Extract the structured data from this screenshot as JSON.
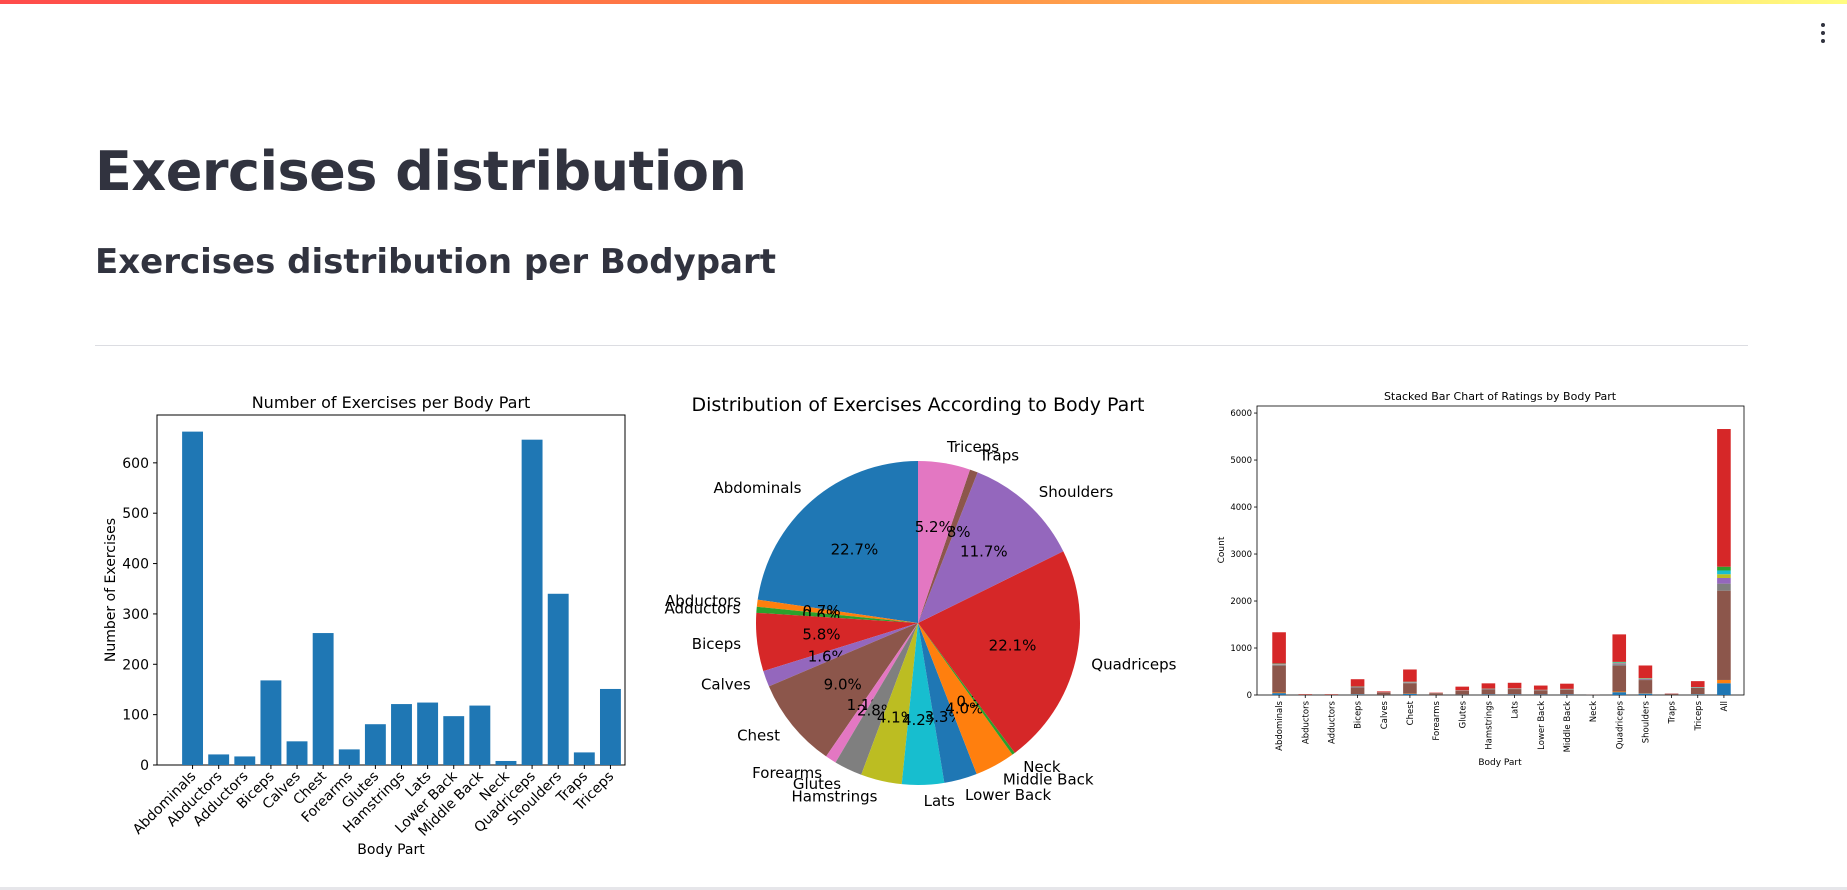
{
  "header": {
    "menu_icon": "vertical-ellipsis-icon",
    "accent_gradient": [
      "#ff4b4b",
      "#ff8c42",
      "#fffd80"
    ]
  },
  "page": {
    "title": "Exercises distribution",
    "subtitle": "Exercises distribution per Bodypart"
  },
  "chart_data": [
    {
      "type": "bar",
      "title": "Number of Exercises per Body Part",
      "xlabel": "Body Part",
      "ylabel": "Number of Exercises",
      "categories": [
        "Abdominals",
        "Abductors",
        "Adductors",
        "Biceps",
        "Calves",
        "Chest",
        "Forearms",
        "Glutes",
        "Hamstrings",
        "Lats",
        "Lower Back",
        "Middle Back",
        "Neck",
        "Quadriceps",
        "Shoulders",
        "Traps",
        "Triceps"
      ],
      "values": [
        662,
        21,
        17,
        168,
        47,
        262,
        31,
        81,
        121,
        124,
        97,
        118,
        8,
        646,
        340,
        25,
        151
      ],
      "ylim": [
        0,
        695
      ],
      "yticks": [
        0,
        100,
        200,
        300,
        400,
        500,
        600
      ],
      "color": "#1f77b4",
      "grid": false
    },
    {
      "type": "pie",
      "title": "Distribution of Exercises According to Body Part",
      "slices": [
        {
          "label": "Abdominals",
          "value": 22.7,
          "pct": "22.7%",
          "color": "#1f77b4"
        },
        {
          "label": "Abductors",
          "value": 0.7,
          "pct": "0.7%",
          "color": "#ff7f0e"
        },
        {
          "label": "Adductors",
          "value": 0.6,
          "pct": "0.6%",
          "color": "#2ca02c"
        },
        {
          "label": "Biceps",
          "value": 5.8,
          "pct": "5.8%",
          "color": "#d62728"
        },
        {
          "label": "Calves",
          "value": 1.6,
          "pct": "1.6%",
          "color": "#9467bd"
        },
        {
          "label": "Chest",
          "value": 9.0,
          "pct": "9.0%",
          "color": "#8c564b"
        },
        {
          "label": "Forearms",
          "value": 1.1,
          "pct": "1.1%",
          "color": "#e377c2"
        },
        {
          "label": "Glutes",
          "value": 2.8,
          "pct": "2.8%",
          "color": "#7f7f7f"
        },
        {
          "label": "Hamstrings",
          "value": 4.1,
          "pct": "4.1%",
          "color": "#bcbd22"
        },
        {
          "label": "Lats",
          "value": 4.2,
          "pct": "4.2%",
          "color": "#17becf"
        },
        {
          "label": "Lower Back",
          "value": 3.3,
          "pct": "3.3%",
          "color": "#1f77b4"
        },
        {
          "label": "Middle Back",
          "value": 4.0,
          "pct": "4.0%",
          "color": "#ff7f0e"
        },
        {
          "label": "Neck",
          "value": 0.3,
          "pct": "0.3%",
          "color": "#2ca02c"
        },
        {
          "label": "Quadriceps",
          "value": 22.1,
          "pct": "22.1%",
          "color": "#d62728"
        },
        {
          "label": "Shoulders",
          "value": 11.7,
          "pct": "11.7%",
          "color": "#9467bd"
        },
        {
          "label": "Traps",
          "value": 0.8,
          "pct": "0.8%",
          "color": "#8c564b"
        },
        {
          "label": "Triceps",
          "value": 5.2,
          "pct": "5.2%",
          "color": "#e377c2"
        }
      ],
      "start_angle_deg": 90,
      "direction": "counterclockwise"
    },
    {
      "type": "stacked-bar",
      "title": "Stacked Bar Chart of Ratings by Body Part",
      "xlabel": "Body Part",
      "ylabel": "Count",
      "categories": [
        "Abdominals",
        "Abductors",
        "Adductors",
        "Biceps",
        "Calves",
        "Chest",
        "Forearms",
        "Glutes",
        "Hamstrings",
        "Lats",
        "Lower Back",
        "Middle Back",
        "Neck",
        "Quadriceps",
        "Shoulders",
        "Traps",
        "Triceps",
        "All"
      ],
      "ylim": [
        0,
        6150
      ],
      "yticks": [
        0,
        1000,
        2000,
        3000,
        4000,
        5000,
        6000
      ],
      "grid": false,
      "series": [
        {
          "color": "#1f77b4",
          "values": [
            40,
            1,
            1,
            15,
            5,
            25,
            3,
            8,
            12,
            13,
            10,
            12,
            1,
            60,
            30,
            3,
            15,
            250
          ]
        },
        {
          "color": "#ff7f0e",
          "values": [
            15,
            0,
            0,
            4,
            1,
            6,
            1,
            2,
            3,
            3,
            2,
            3,
            0,
            15,
            8,
            1,
            4,
            70
          ]
        },
        {
          "color": "#8c564b",
          "values": [
            570,
            10,
            10,
            140,
            45,
            220,
            30,
            75,
            105,
            110,
            85,
            100,
            5,
            550,
            280,
            22,
            130,
            1900
          ]
        },
        {
          "color": "#7f7f7f",
          "values": [
            20,
            0,
            0,
            8,
            2,
            12,
            2,
            4,
            6,
            6,
            5,
            6,
            0,
            30,
            15,
            1,
            7,
            150
          ]
        },
        {
          "color": "#9467bd",
          "values": [
            10,
            0,
            0,
            5,
            1,
            8,
            1,
            3,
            4,
            4,
            3,
            4,
            0,
            20,
            10,
            1,
            5,
            120
          ]
        },
        {
          "color": "#bcbd22",
          "values": [
            5,
            0,
            0,
            3,
            1,
            4,
            1,
            2,
            2,
            2,
            2,
            2,
            0,
            10,
            5,
            0,
            3,
            80
          ]
        },
        {
          "color": "#17becf",
          "values": [
            5,
            0,
            0,
            3,
            1,
            4,
            1,
            2,
            2,
            2,
            2,
            2,
            0,
            10,
            5,
            0,
            3,
            80
          ]
        },
        {
          "color": "#2ca02c",
          "values": [
            5,
            0,
            0,
            3,
            1,
            4,
            1,
            2,
            2,
            2,
            2,
            2,
            0,
            10,
            5,
            0,
            3,
            80
          ]
        },
        {
          "color": "#d62728",
          "values": [
            665,
            7,
            6,
            155,
            20,
            260,
            10,
            80,
            112,
            118,
            90,
            110,
            0,
            585,
            270,
            5,
            125,
            2930
          ]
        }
      ]
    }
  ]
}
